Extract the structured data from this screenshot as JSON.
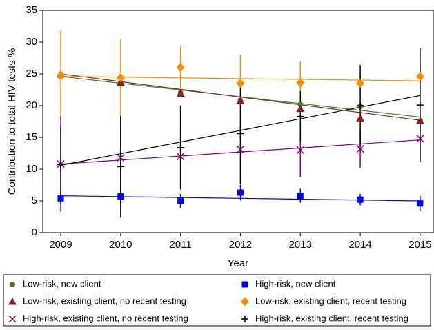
{
  "chart_data": {
    "type": "scatter",
    "xlabel": "Year",
    "ylabel": "Contribution to total HIV tests %",
    "x": [
      2009,
      2010,
      2011,
      2012,
      2013,
      2014,
      2015
    ],
    "xlim": [
      2008.7,
      2015.22
    ],
    "xticks": [
      2009,
      2010,
      2011,
      2012,
      2013,
      2014,
      2015
    ],
    "ylim": [
      0,
      35
    ],
    "yticks": [
      0,
      5,
      10,
      15,
      20,
      25,
      30,
      35
    ],
    "series": [
      {
        "name": "Low-risk, new client",
        "color": "#3f7f2a",
        "marker": "circle",
        "values": [
          24.6,
          23.6,
          22.0,
          20.8,
          20.2,
          19.9,
          17.6
        ],
        "trend": [
          24.6,
          18.2
        ]
      },
      {
        "name": "High-risk, new client",
        "color": "#0000ff",
        "marker": "square",
        "values": [
          5.4,
          5.7,
          5.0,
          6.3,
          5.8,
          5.2,
          4.6
        ],
        "errors": [
          1.0,
          1.2,
          1.1,
          1.2,
          1.1,
          0.9,
          1.2
        ],
        "trend": [
          5.8,
          5.0
        ]
      },
      {
        "name": "Low-risk, existing client, no recent testing",
        "color": "#8b2323",
        "marker": "triangle",
        "values": [
          24.9,
          23.6,
          21.9,
          20.7,
          19.5,
          18.0,
          17.6
        ],
        "trend": [
          25.0,
          17.7
        ]
      },
      {
        "name": "Low-risk, existing client, recent testing",
        "color": "#ff8c00",
        "marker": "diamond",
        "values": [
          24.8,
          24.4,
          26.0,
          23.5,
          23.6,
          23.5,
          24.6
        ],
        "errors": [
          7.1,
          6.1,
          3.3,
          4.5,
          3.4,
          1.5,
          1.0
        ],
        "trend": [
          24.6,
          23.9
        ]
      },
      {
        "name": "High-risk, existing client, no recent testing",
        "color": "#800080",
        "marker": "x",
        "values": [
          10.8,
          11.8,
          12.0,
          13.1,
          13.0,
          13.2,
          14.8
        ],
        "errors": [
          7.5,
          5.5,
          5.0,
          5.5,
          4.2,
          3.0,
          3.7
        ],
        "trend": [
          10.8,
          14.6
        ]
      },
      {
        "name": "High-risk, existing client, recent testing",
        "color": "#000000",
        "marker": "plus",
        "values": [
          10.7,
          10.4,
          13.4,
          15.6,
          18.3,
          20.0,
          20.1
        ],
        "errors": [
          6.0,
          8.0,
          6.6,
          8.0,
          4.0,
          6.4,
          9.0
        ],
        "trend": [
          10.6,
          21.6
        ]
      }
    ]
  }
}
